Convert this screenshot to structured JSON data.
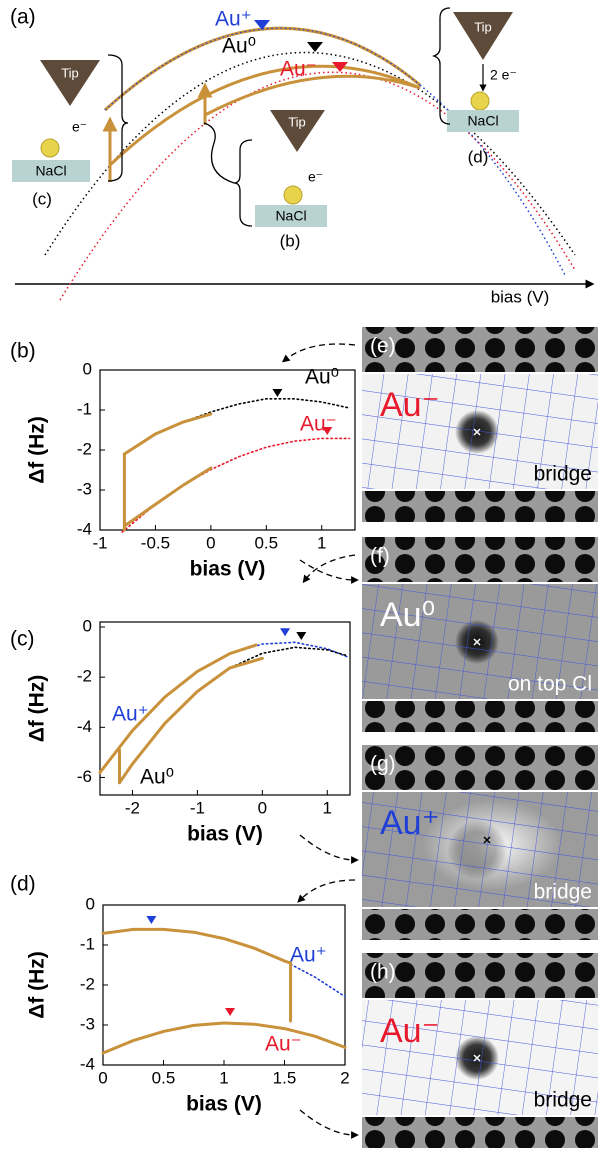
{
  "schematic": {
    "panel": "(a)",
    "states": [
      "Au⁺",
      "Au⁰",
      "Au⁻"
    ],
    "tip": "Tip",
    "substrate": "NaCl",
    "insets": [
      "(c)",
      "(b)",
      "(d)"
    ],
    "electron": "e⁻",
    "two_electrons": "2 e⁻",
    "axis": "bias (V)"
  },
  "chart_data": [
    {
      "type": "line",
      "panel": "(b)",
      "xlabel": "bias (V)",
      "ylabel": "Δf (Hz)",
      "xlim": [
        -1,
        1.3
      ],
      "xticks": [
        -1,
        -0.5,
        0,
        0.5,
        1
      ],
      "ylim": [
        -4,
        0
      ],
      "yticks": [
        0,
        -1,
        -2,
        -3,
        -4
      ],
      "series": [
        {
          "name": "Au⁰",
          "color": "#000000",
          "style": "dotted",
          "x": [
            -0.78,
            -0.5,
            -0.25,
            0,
            0.25,
            0.5,
            0.75,
            1,
            1.25
          ],
          "values": [
            -2.1,
            -1.6,
            -1.3,
            -1.05,
            -0.85,
            -0.72,
            -0.72,
            -0.8,
            -0.95
          ]
        },
        {
          "name": "Au⁻",
          "color": "#e8192c",
          "style": "dotted",
          "x": [
            -0.8,
            -0.5,
            -0.25,
            0,
            0.25,
            0.5,
            0.75,
            1,
            1.25
          ],
          "values": [
            -4.05,
            -3.36,
            -2.88,
            -2.49,
            -2.17,
            -1.93,
            -1.78,
            -1.71,
            -1.71
          ]
        },
        {
          "color": "#c8913a",
          "style": "solid",
          "x": [
            -0.78,
            -0.5,
            -0.25,
            0
          ],
          "values": [
            -2.1,
            -1.6,
            -1.3,
            -1.1
          ]
        },
        {
          "color": "#c8913a",
          "style": "solid",
          "x": [
            -0.78,
            -0.5,
            -0.25,
            0
          ],
          "values": [
            -3.9,
            -3.36,
            -2.88,
            -2.45
          ]
        },
        {
          "color": "#c8913a",
          "style": "solid",
          "x": [
            -0.78,
            -0.78
          ],
          "values": [
            -4,
            -2.1
          ]
        }
      ],
      "vertices": [
        {
          "x": 0.6,
          "y": -0.6,
          "color": "#000000"
        },
        {
          "x": 1.05,
          "y": -1.55,
          "color": "#e8192c"
        }
      ]
    },
    {
      "type": "line",
      "panel": "(c)",
      "xlabel": "bias (V)",
      "ylabel": "Δf (Hz)",
      "xlim": [
        -2.5,
        1.35
      ],
      "xticks": [
        -2,
        -1,
        0,
        1
      ],
      "ylim": [
        -6.7,
        0.2
      ],
      "yticks": [
        0,
        -2,
        -4,
        -6
      ],
      "series": [
        {
          "name": "Au⁺",
          "color": "#1f3fd6",
          "style": "dotted",
          "x": [
            -2.5,
            -2,
            -1.5,
            -1,
            -0.5,
            0,
            0.5,
            1,
            1.3
          ],
          "values": [
            -5.8,
            -4.13,
            -2.79,
            -1.77,
            -1.06,
            -0.68,
            -0.61,
            -0.87,
            -1.18
          ]
        },
        {
          "name": "Au⁰",
          "color": "#000000",
          "style": "dotted",
          "x": [
            -2.2,
            -2,
            -1.5,
            -1,
            -0.5,
            0,
            0.5,
            1,
            1.3
          ],
          "values": [
            -6.21,
            -5.46,
            -3.84,
            -2.57,
            -1.63,
            -1.05,
            -0.81,
            -0.91,
            -1.14
          ]
        },
        {
          "color": "#c8913a",
          "style": "solid",
          "x": [
            -2.5,
            -2,
            -1.5,
            -1,
            -0.5,
            -0.1
          ],
          "values": [
            -5.8,
            -4.13,
            -2.79,
            -1.77,
            -1.06,
            -0.72
          ]
        },
        {
          "color": "#c8913a",
          "style": "solid",
          "x": [
            -2.2,
            -2,
            -1.5,
            -1,
            -0.5,
            0
          ],
          "values": [
            -6.21,
            -5.46,
            -3.84,
            -2.57,
            -1.63,
            -1.25
          ]
        },
        {
          "color": "#c8913a",
          "style": "solid",
          "x": [
            -2.2,
            -2.2
          ],
          "values": [
            -6.2,
            -4.9
          ]
        }
      ],
      "vertices": [
        {
          "x": 0.35,
          "y": -0.25,
          "color": "#1f3fd6"
        },
        {
          "x": 0.6,
          "y": -0.4,
          "color": "#000000"
        }
      ]
    },
    {
      "type": "line",
      "panel": "(d)",
      "xlabel": "bias (V)",
      "ylabel": "Δf (Hz)",
      "xlim": [
        0,
        2
      ],
      "xticks": [
        0,
        0.5,
        1,
        1.5,
        2
      ],
      "ylim": [
        -4,
        0
      ],
      "yticks": [
        0,
        -1,
        -2,
        -3,
        -4
      ],
      "series": [
        {
          "name": "Au⁺",
          "color": "#1f3fd6",
          "style": "dotted",
          "x": [
            0,
            0.25,
            0.5,
            0.75,
            1,
            1.25,
            1.5,
            1.75,
            2
          ],
          "values": [
            -0.71,
            -0.61,
            -0.61,
            -0.68,
            -0.84,
            -1.08,
            -1.4,
            -1.8,
            -2.29
          ]
        },
        {
          "name": "Au⁻",
          "color": "#e8192c",
          "style": "dotted",
          "x": [
            0,
            0.25,
            0.5,
            0.75,
            1,
            1.25,
            1.5,
            1.75,
            2
          ],
          "values": [
            -3.7,
            -3.39,
            -3.16,
            -3.01,
            -2.95,
            -2.98,
            -3.09,
            -3.28,
            -3.56
          ]
        },
        {
          "color": "#c8913a",
          "style": "solid",
          "x": [
            0,
            0.25,
            0.5,
            0.75,
            1,
            1.25,
            1.5,
            1.55
          ],
          "values": [
            -0.71,
            -0.61,
            -0.61,
            -0.68,
            -0.84,
            -1.08,
            -1.4,
            -1.45
          ]
        },
        {
          "color": "#c8913a",
          "style": "solid",
          "x": [
            0,
            0.25,
            0.5,
            0.75,
            1,
            1.25,
            1.5,
            1.75,
            2
          ],
          "values": [
            -3.7,
            -3.39,
            -3.16,
            -3.01,
            -2.95,
            -2.98,
            -3.09,
            -3.28,
            -3.56
          ]
        },
        {
          "color": "#c8913a",
          "style": "solid",
          "x": [
            1.55,
            1.55
          ],
          "values": [
            -1.45,
            -2.9
          ]
        }
      ],
      "vertices": [
        {
          "x": 0.4,
          "y": -0.4,
          "color": "#1f3fd6"
        },
        {
          "x": 1.05,
          "y": -2.7,
          "color": "#e8192c"
        }
      ]
    }
  ],
  "images": [
    {
      "panel": "(e)",
      "species": "Au⁻",
      "site": "bridge",
      "color": "#e8192c"
    },
    {
      "panel": "(f)",
      "species": "Au⁰",
      "site": "on top Cl",
      "color": "#ffffff"
    },
    {
      "panel": "(g)",
      "species": "Au⁺",
      "site": "bridge",
      "color": "#1f3fd6"
    },
    {
      "panel": "(h)",
      "species": "Au⁻",
      "site": "bridge",
      "color": "#e8192c"
    }
  ]
}
